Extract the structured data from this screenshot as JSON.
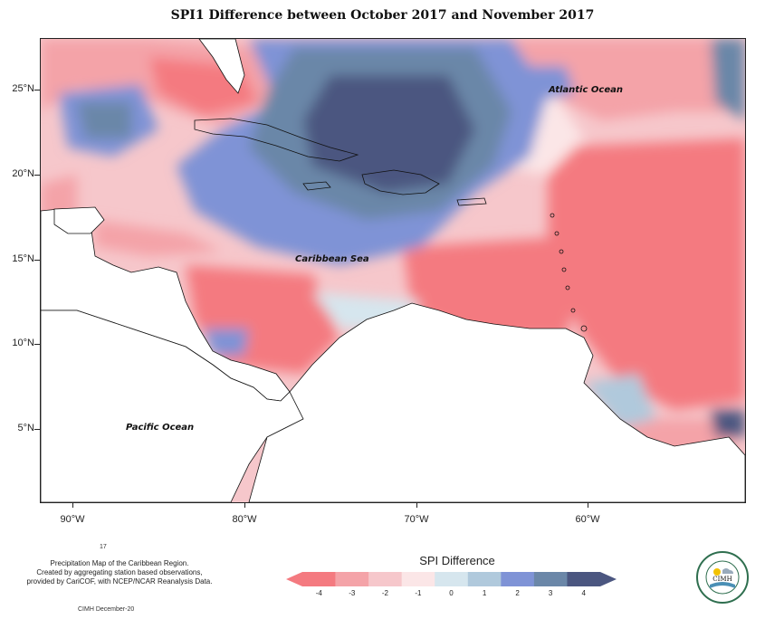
{
  "title": "SPI1 Difference between October 2017 and November 2017",
  "map": {
    "lat_ticks": [
      "25°N",
      "20°N",
      "15°N",
      "10°N",
      "5°N"
    ],
    "lon_ticks": [
      "90°W",
      "80°W",
      "70°W",
      "60°W"
    ],
    "labels": {
      "atlantic": "Atlantic Ocean",
      "caribbean": "Caribbean Sea",
      "pacific": "Pacific Ocean"
    }
  },
  "legend": {
    "title": "SPI Difference",
    "ticks": [
      "-4",
      "-3",
      "-2",
      "-1",
      "0",
      "1",
      "2",
      "3",
      "4"
    ],
    "colors": [
      "#f47a80",
      "#f4a3a8",
      "#f6c7cb",
      "#fbe6e7",
      "#d6e6ee",
      "#b0c9dc",
      "#7f93d6",
      "#6b87a8",
      "#4b5680"
    ]
  },
  "footnote": {
    "mark": "17",
    "line1": "Precipitation Map of the Caribbean Region.",
    "line2": "Created by aggregating station based observations,",
    "line3": "provided by CariCOF, with NCEP/NCAR Reanalysis Data.",
    "credit": "CIMH December-20"
  },
  "logo": {
    "text": "CIMH"
  }
}
